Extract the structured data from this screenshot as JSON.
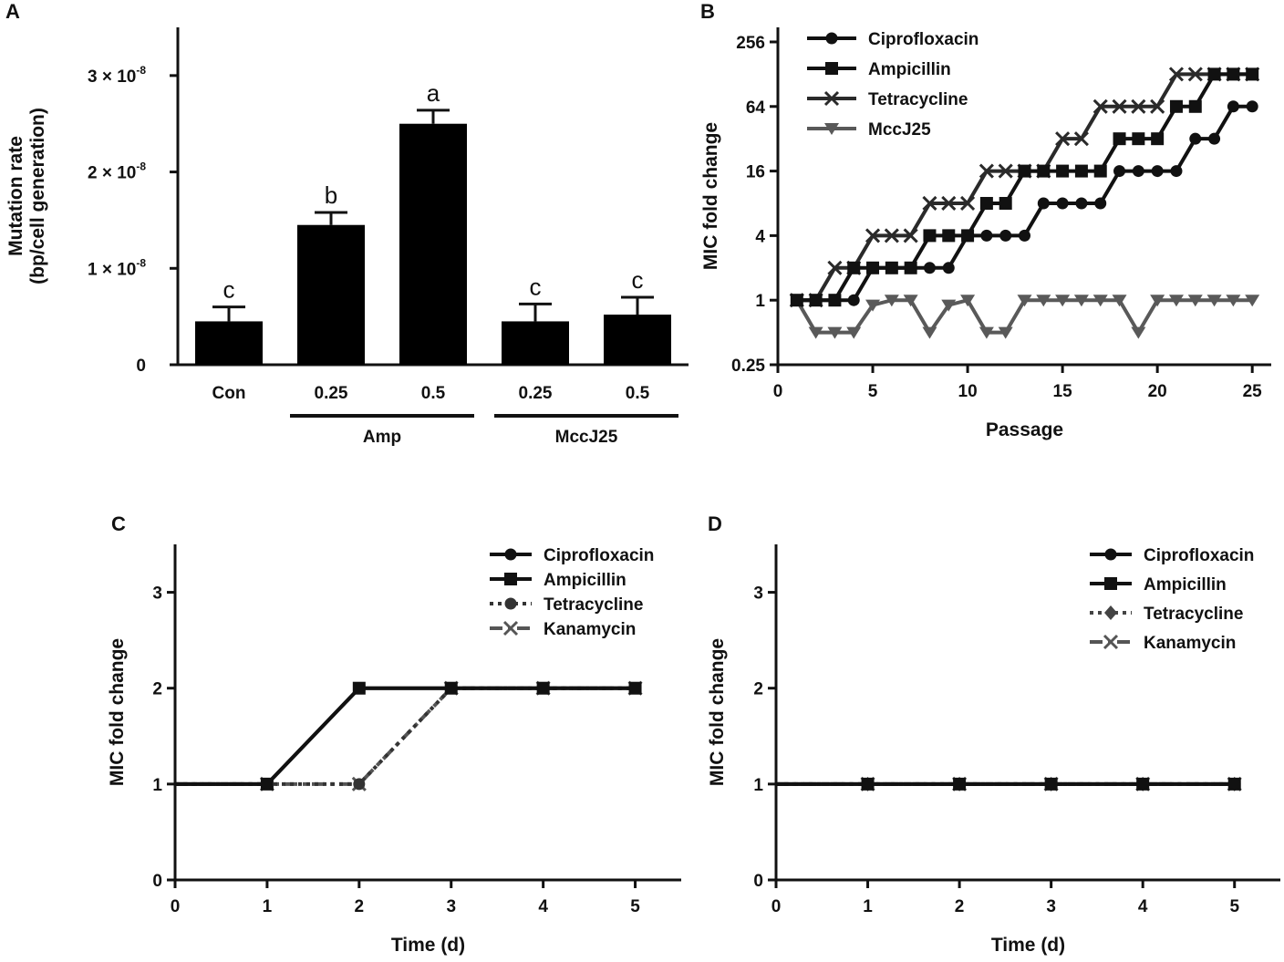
{
  "chart_data": [
    {
      "panel": "A",
      "type": "bar",
      "ylabel_line1": "Mutation rate",
      "ylabel_line2": "(bp/cell generation)",
      "ylim": [
        0,
        3.5e-08
      ],
      "yticks": [
        {
          "value": 0,
          "label": "0",
          "exp": ""
        },
        {
          "value": 1e-08,
          "label": "1 × 10",
          "exp": "-8"
        },
        {
          "value": 2e-08,
          "label": "2 × 10",
          "exp": "-8"
        },
        {
          "value": 3e-08,
          "label": "3 × 10",
          "exp": "-8"
        }
      ],
      "categories": [
        "Con",
        "0.25",
        "0.5",
        "0.25",
        "0.5"
      ],
      "values": [
        4.5e-09,
        1.45e-08,
        2.5e-08,
        4.5e-09,
        5.2e-09
      ],
      "errors": [
        1.5e-09,
        1.3e-09,
        1.4e-09,
        1.8e-09,
        1.8e-09
      ],
      "significance": [
        "c",
        "b",
        "a",
        "c",
        "c"
      ],
      "groups": [
        {
          "label": "Amp",
          "from": 1,
          "to": 2
        },
        {
          "label": "MccJ25",
          "from": 3,
          "to": 4
        }
      ]
    },
    {
      "panel": "B",
      "type": "line",
      "xlabel": "Passage",
      "ylabel": "MIC fold change",
      "yscale": "log2",
      "xlim": [
        0,
        26
      ],
      "ylim": [
        0.25,
        350
      ],
      "xticks": [
        0,
        5,
        10,
        15,
        20,
        25
      ],
      "yticks": [
        {
          "value": 0.25,
          "label": "0.25"
        },
        {
          "value": 1,
          "label": "1"
        },
        {
          "value": 4,
          "label": "4"
        },
        {
          "value": 16,
          "label": "16"
        },
        {
          "value": 64,
          "label": "64"
        },
        {
          "value": 256,
          "label": "256"
        }
      ],
      "x": [
        1,
        2,
        3,
        4,
        5,
        6,
        7,
        8,
        9,
        10,
        11,
        12,
        13,
        14,
        15,
        16,
        17,
        18,
        19,
        20,
        21,
        22,
        23,
        24,
        25
      ],
      "series": [
        {
          "name": "Ciprofloxacin",
          "marker": "circle",
          "color": "#111111",
          "values": [
            1,
            1,
            1,
            1,
            2,
            2,
            2,
            2,
            2,
            4,
            4,
            4,
            4,
            8,
            8,
            8,
            8,
            16,
            16,
            16,
            16,
            32,
            32,
            64,
            64
          ]
        },
        {
          "name": "Ampicillin",
          "marker": "square",
          "color": "#111111",
          "values": [
            1,
            1,
            1,
            2,
            2,
            2,
            2,
            4,
            4,
            4,
            8,
            8,
            16,
            16,
            16,
            16,
            16,
            32,
            32,
            32,
            64,
            64,
            128,
            128,
            128
          ]
        },
        {
          "name": "Tetracycline",
          "marker": "x",
          "color": "#2a2a2a",
          "values": [
            1,
            1,
            2,
            2,
            4,
            4,
            4,
            8,
            8,
            8,
            16,
            16,
            16,
            16,
            32,
            32,
            64,
            64,
            64,
            64,
            128,
            128,
            128,
            128,
            128
          ]
        },
        {
          "name": "MccJ25",
          "marker": "triangle-down",
          "color": "#595959",
          "values": [
            1,
            0.5,
            0.5,
            0.5,
            0.9,
            1,
            1,
            0.5,
            0.9,
            1,
            0.5,
            0.5,
            1,
            1,
            1,
            1,
            1,
            1,
            0.5,
            1,
            1,
            1,
            1,
            1,
            1
          ]
        }
      ]
    },
    {
      "panel": "C",
      "type": "line",
      "xlabel": "Time (d)",
      "ylabel": "MIC fold change",
      "xlim": [
        0,
        5.5
      ],
      "ylim": [
        0,
        3.5
      ],
      "xticks": [
        0,
        1,
        2,
        3,
        4,
        5
      ],
      "yticks": [
        0,
        1,
        2,
        3
      ],
      "x": [
        0,
        1,
        2,
        3,
        4,
        5
      ],
      "series": [
        {
          "name": "Ciprofloxacin",
          "marker": "circle",
          "dash": "solid",
          "color": "#111111",
          "values": [
            1,
            1,
            2,
            2,
            2,
            2
          ]
        },
        {
          "name": "Ampicillin",
          "marker": "square",
          "dash": "solid",
          "color": "#111111",
          "values": [
            1,
            1,
            2,
            2,
            2,
            2
          ]
        },
        {
          "name": "Tetracycline",
          "marker": "circle",
          "dash": "dotted",
          "color": "#333333",
          "values": [
            1,
            1,
            1,
            2,
            2,
            2
          ]
        },
        {
          "name": "Kanamycin",
          "marker": "x",
          "dash": "dashdot",
          "color": "#555555",
          "values": [
            1,
            1,
            1,
            2,
            2,
            2
          ]
        }
      ]
    },
    {
      "panel": "D",
      "type": "line",
      "xlabel": "Time (d)",
      "ylabel": "MIC fold change",
      "xlim": [
        0,
        5.5
      ],
      "ylim": [
        0,
        3.5
      ],
      "xticks": [
        0,
        1,
        2,
        3,
        4,
        5
      ],
      "yticks": [
        0,
        1,
        2,
        3
      ],
      "x": [
        0,
        1,
        2,
        3,
        4,
        5
      ],
      "series": [
        {
          "name": "Ciprofloxacin",
          "marker": "circle",
          "dash": "solid",
          "color": "#111111",
          "values": [
            1,
            1,
            1,
            1,
            1,
            1
          ]
        },
        {
          "name": "Ampicillin",
          "marker": "square",
          "dash": "solid",
          "color": "#111111",
          "values": [
            1,
            1,
            1,
            1,
            1,
            1
          ]
        },
        {
          "name": "Tetracycline",
          "marker": "diamond",
          "dash": "dotted",
          "color": "#444444",
          "values": [
            1,
            1,
            1,
            1,
            1,
            1
          ]
        },
        {
          "name": "Kanamycin",
          "marker": "x",
          "dash": "dashdot",
          "color": "#555555",
          "values": [
            1,
            1,
            1,
            1,
            1,
            1
          ]
        }
      ]
    }
  ]
}
